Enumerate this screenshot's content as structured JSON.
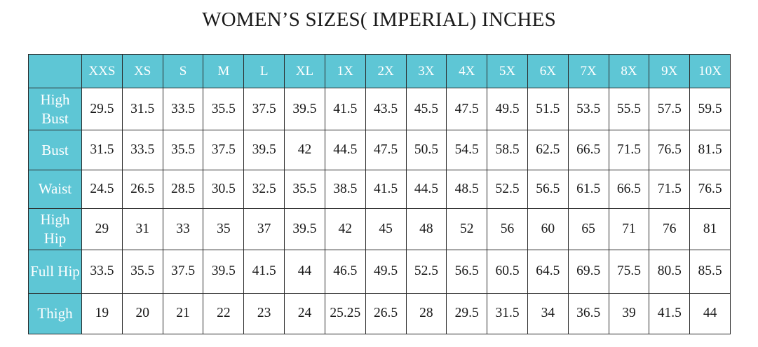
{
  "title": "WOMEN’S SIZES( IMPERIAL) INCHES",
  "colors": {
    "header_bg": "#5ec6d5",
    "header_text": "#ffffff",
    "border": "#2a2a2a"
  },
  "sizes": [
    "XXS",
    "XS",
    "S",
    "M",
    "L",
    "XL",
    "1X",
    "2X",
    "3X",
    "4X",
    "5X",
    "6X",
    "7X",
    "8X",
    "9X",
    "10X"
  ],
  "rows": [
    {
      "label": "High Bust",
      "values": [
        "29.5",
        "31.5",
        "33.5",
        "35.5",
        "37.5",
        "39.5",
        "41.5",
        "43.5",
        "45.5",
        "47.5",
        "49.5",
        "51.5",
        "53.5",
        "55.5",
        "57.5",
        "59.5"
      ]
    },
    {
      "label": "Bust",
      "values": [
        "31.5",
        "33.5",
        "35.5",
        "37.5",
        "39.5",
        "42",
        "44.5",
        "47.5",
        "50.5",
        "54.5",
        "58.5",
        "62.5",
        "66.5",
        "71.5",
        "76.5",
        "81.5"
      ]
    },
    {
      "label": "Waist",
      "values": [
        "24.5",
        "26.5",
        "28.5",
        "30.5",
        "32.5",
        "35.5",
        "38.5",
        "41.5",
        "44.5",
        "48.5",
        "52.5",
        "56.5",
        "61.5",
        "66.5",
        "71.5",
        "76.5"
      ]
    },
    {
      "label": "High Hip",
      "values": [
        "29",
        "31",
        "33",
        "35",
        "37",
        "39.5",
        "42",
        "45",
        "48",
        "52",
        "56",
        "60",
        "65",
        "71",
        "76",
        "81"
      ]
    },
    {
      "label": "Full Hip",
      "values": [
        "33.5",
        "35.5",
        "37.5",
        "39.5",
        "41.5",
        "44",
        "46.5",
        "49.5",
        "52.5",
        "56.5",
        "60.5",
        "64.5",
        "69.5",
        "75.5",
        "80.5",
        "85.5"
      ]
    },
    {
      "label": "Thigh",
      "values": [
        "19",
        "20",
        "21",
        "22",
        "23",
        "24",
        "25.25",
        "26.5",
        "28",
        "29.5",
        "31.5",
        "34",
        "36.5",
        "39",
        "41.5",
        "44"
      ]
    }
  ]
}
